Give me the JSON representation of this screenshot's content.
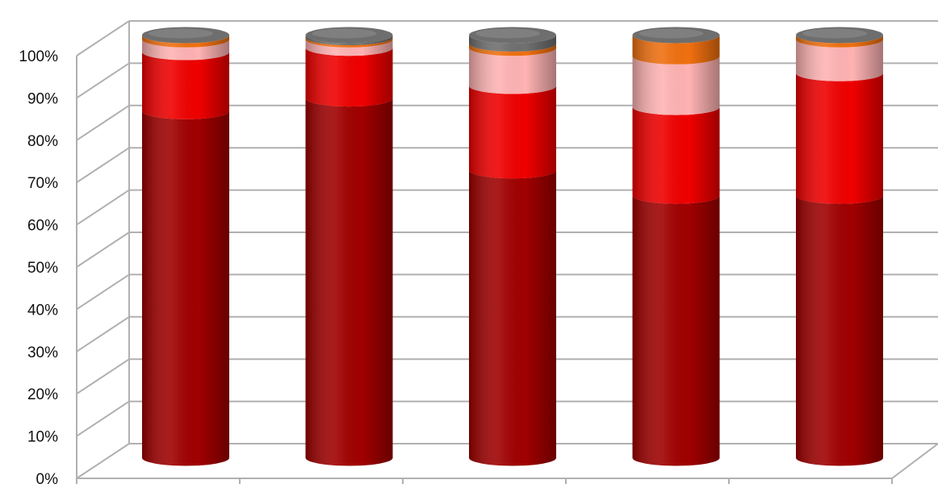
{
  "chart_data": {
    "type": "bar",
    "stacked": "percent",
    "style": "3d-cylinder",
    "title": "",
    "xlabel": "",
    "ylabel": "",
    "ylim": [
      0,
      100
    ],
    "y_tick_labels": [
      "0%",
      "10%",
      "20%",
      "30%",
      "40%",
      "50%",
      "60%",
      "70%",
      "80%",
      "90%",
      "100%"
    ],
    "grid": true,
    "legend": "none",
    "categories": [
      "",
      "",
      "",
      "",
      ""
    ],
    "series": [
      {
        "color": "#a00000",
        "values": [
          82,
          85,
          68,
          62,
          62
        ]
      },
      {
        "color": "#f00000",
        "values": [
          14,
          12,
          20,
          21,
          29
        ]
      },
      {
        "color": "#ffb3b3",
        "values": [
          3,
          2,
          9,
          12,
          8
        ]
      },
      {
        "color": "#f07010",
        "values": [
          1,
          0.5,
          1,
          5,
          1
        ]
      },
      {
        "color": "#707070",
        "values": [
          0,
          0.5,
          2,
          0,
          0
        ]
      }
    ]
  }
}
